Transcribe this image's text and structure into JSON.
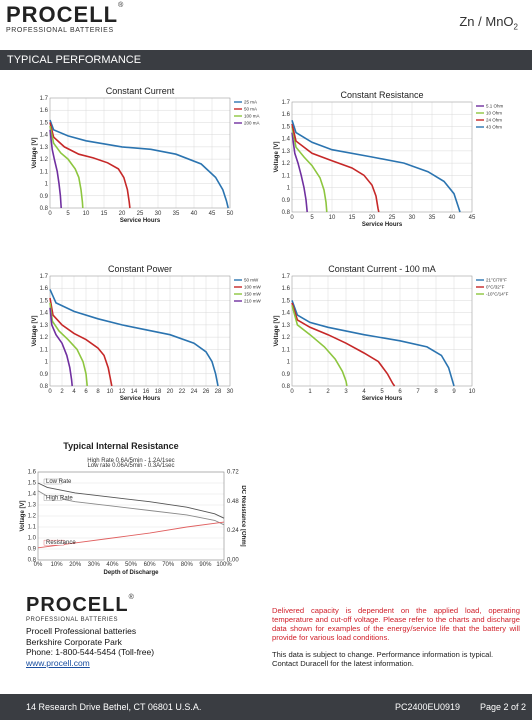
{
  "header": {
    "brand": "PROCELL",
    "tagline": "PROFESSIONAL BATTERIES",
    "chemistry": "Zn / MnO",
    "chemistry_sub": "2"
  },
  "banner": {
    "title": "TYPICAL  PERFORMANCE"
  },
  "charts": {
    "voltage_label": "Voltage [V]",
    "hours_label": "Service Hours",
    "cc": {
      "title": "Constant Current",
      "legend": [
        "25 mA",
        "50 mA",
        "100 mA",
        "200 mA"
      ],
      "xticks": [
        "0",
        "5",
        "10",
        "15",
        "20",
        "25",
        "30",
        "35",
        "40",
        "45",
        "50"
      ]
    },
    "cr": {
      "title": "Constant Resistance",
      "legend": [
        "5.1 Ohm",
        "10 Ohm",
        "24 Ohm",
        "43 Ohm"
      ],
      "xticks": [
        "0",
        "5",
        "10",
        "15",
        "20",
        "25",
        "30",
        "35",
        "40",
        "45"
      ]
    },
    "cp": {
      "title": "Constant Power",
      "legend": [
        "50 mW",
        "100 mW",
        "150 mW",
        "210 mW"
      ],
      "xticks": [
        "0",
        "2",
        "4",
        "6",
        "8",
        "10",
        "12",
        "14",
        "16",
        "18",
        "20",
        "22",
        "24",
        "26",
        "28",
        "30"
      ]
    },
    "c100": {
      "title": "Constant Current - 100 mA",
      "legend": [
        "21°C/70°F",
        "0°C/32°F",
        "-10°C/14°F"
      ],
      "xticks": [
        "0",
        "1",
        "2",
        "3",
        "4",
        "5",
        "6",
        "7",
        "8",
        "9",
        "10"
      ]
    },
    "yticks": [
      "0.8",
      "0.9",
      "1",
      "1.1",
      "1.2",
      "1.3",
      "1.4",
      "1.5",
      "1.6",
      "1.7"
    ],
    "ir": {
      "title": "Typical Internal Resistance",
      "sub1": "High Rate 0.6A/5min - 1.2A/1sec",
      "sub2": "Low rate 0.06A/5min - 0.3A/1sec",
      "low_rate": "Low Rate",
      "high_rate": "High Rate",
      "resistance": "Resistance",
      "ylabel": "Voltage [V]",
      "y2label": "DC Resistance [Ohm]",
      "xlabel": "Depth of Discharge",
      "yticks": [
        "0.8",
        "0.9",
        "1.0",
        "1.1",
        "1.2",
        "1.3",
        "1.4",
        "1.5",
        "1.6"
      ],
      "y2ticks": [
        "0.00",
        "0.24",
        "0.48",
        "0.72"
      ],
      "xticks": [
        "0%",
        "10%",
        "20%",
        "30%",
        "40%",
        "50%",
        "60%",
        "70%",
        "80%",
        "90%",
        "100%"
      ]
    }
  },
  "chart_data": [
    {
      "type": "line",
      "title": "Constant Current",
      "xlabel": "Service Hours",
      "ylabel": "Voltage [V]",
      "xlim": [
        0,
        50
      ],
      "ylim": [
        0.8,
        1.7
      ],
      "series": [
        {
          "name": "25 mA",
          "color": "#2b74b0",
          "points": [
            [
              0,
              1.52
            ],
            [
              1,
              1.44
            ],
            [
              5,
              1.39
            ],
            [
              10,
              1.35
            ],
            [
              20,
              1.3
            ],
            [
              28,
              1.28
            ],
            [
              35,
              1.24
            ],
            [
              42,
              1.16
            ],
            [
              46,
              1.05
            ],
            [
              48,
              0.95
            ],
            [
              49,
              0.86
            ],
            [
              49.5,
              0.8
            ]
          ]
        },
        {
          "name": "50 mA",
          "color": "#c62828",
          "points": [
            [
              0,
              1.5
            ],
            [
              1,
              1.38
            ],
            [
              4,
              1.3
            ],
            [
              8,
              1.24
            ],
            [
              12,
              1.21
            ],
            [
              16,
              1.17
            ],
            [
              19,
              1.12
            ],
            [
              20.5,
              1.05
            ],
            [
              21.5,
              0.95
            ],
            [
              22,
              0.85
            ],
            [
              22.2,
              0.8
            ]
          ]
        },
        {
          "name": "100 mA",
          "color": "#8dc63f",
          "points": [
            [
              0,
              1.47
            ],
            [
              1,
              1.33
            ],
            [
              3,
              1.25
            ],
            [
              5,
              1.2
            ],
            [
              7,
              1.12
            ],
            [
              8,
              1.05
            ],
            [
              8.6,
              0.95
            ],
            [
              9,
              0.85
            ],
            [
              9.1,
              0.8
            ]
          ]
        },
        {
          "name": "200 mA",
          "color": "#7030a0",
          "points": [
            [
              0,
              1.44
            ],
            [
              0.6,
              1.28
            ],
            [
              1.2,
              1.2
            ],
            [
              2,
              1.1
            ],
            [
              2.5,
              1.0
            ],
            [
              2.9,
              0.9
            ],
            [
              3.1,
              0.8
            ]
          ]
        }
      ]
    },
    {
      "type": "line",
      "title": "Constant Resistance",
      "xlabel": "Service Hours",
      "ylabel": "Voltage [V]",
      "xlim": [
        0,
        45
      ],
      "ylim": [
        0.8,
        1.7
      ],
      "series": [
        {
          "name": "5.1 Ohm",
          "color": "#7030a0",
          "points": [
            [
              0,
              1.45
            ],
            [
              0.7,
              1.28
            ],
            [
              1.5,
              1.2
            ],
            [
              2.3,
              1.1
            ],
            [
              3,
              1.0
            ],
            [
              3.5,
              0.9
            ],
            [
              3.8,
              0.8
            ]
          ]
        },
        {
          "name": "10 Ohm",
          "color": "#8dc63f",
          "points": [
            [
              0,
              1.5
            ],
            [
              1,
              1.33
            ],
            [
              3,
              1.25
            ],
            [
              5,
              1.18
            ],
            [
              7,
              1.08
            ],
            [
              8,
              0.98
            ],
            [
              8.5,
              0.88
            ],
            [
              8.7,
              0.8
            ]
          ]
        },
        {
          "name": "24 Ohm",
          "color": "#c62828",
          "points": [
            [
              0,
              1.52
            ],
            [
              1,
              1.38
            ],
            [
              5,
              1.28
            ],
            [
              10,
              1.22
            ],
            [
              15,
              1.16
            ],
            [
              18,
              1.1
            ],
            [
              20,
              1.02
            ],
            [
              21,
              0.93
            ],
            [
              21.5,
              0.83
            ],
            [
              21.7,
              0.8
            ]
          ]
        },
        {
          "name": "43 Ohm",
          "color": "#2b74b0",
          "points": [
            [
              0,
              1.55
            ],
            [
              1,
              1.45
            ],
            [
              5,
              1.37
            ],
            [
              10,
              1.31
            ],
            [
              20,
              1.25
            ],
            [
              28,
              1.2
            ],
            [
              34,
              1.13
            ],
            [
              38,
              1.05
            ],
            [
              40.5,
              0.95
            ],
            [
              41.5,
              0.85
            ],
            [
              42,
              0.8
            ]
          ]
        }
      ]
    },
    {
      "type": "line",
      "title": "Constant Power",
      "xlabel": "Service Hours",
      "ylabel": "Voltage [V]",
      "xlim": [
        0,
        30
      ],
      "ylim": [
        0.8,
        1.7
      ],
      "series": [
        {
          "name": "50 mW",
          "color": "#2b74b0",
          "points": [
            [
              0,
              1.59
            ],
            [
              1,
              1.48
            ],
            [
              4,
              1.41
            ],
            [
              8,
              1.35
            ],
            [
              12,
              1.3
            ],
            [
              16,
              1.26
            ],
            [
              20,
              1.22
            ],
            [
              24,
              1.15
            ],
            [
              26,
              1.08
            ],
            [
              27,
              1.0
            ],
            [
              27.6,
              0.9
            ],
            [
              28,
              0.8
            ]
          ]
        },
        {
          "name": "100 mW",
          "color": "#c62828",
          "points": [
            [
              0,
              1.52
            ],
            [
              0.5,
              1.38
            ],
            [
              2,
              1.3
            ],
            [
              4,
              1.23
            ],
            [
              6,
              1.18
            ],
            [
              8,
              1.11
            ],
            [
              9,
              1.05
            ],
            [
              9.7,
              0.95
            ],
            [
              10.1,
              0.85
            ],
            [
              10.3,
              0.8
            ]
          ]
        },
        {
          "name": "150 mW",
          "color": "#8dc63f",
          "points": [
            [
              0,
              1.48
            ],
            [
              0.4,
              1.33
            ],
            [
              1.5,
              1.25
            ],
            [
              3,
              1.18
            ],
            [
              4.5,
              1.1
            ],
            [
              5.5,
              1.0
            ],
            [
              6,
              0.9
            ],
            [
              6.2,
              0.8
            ]
          ]
        },
        {
          "name": "210 mW",
          "color": "#7030a0",
          "points": [
            [
              0,
              1.44
            ],
            [
              0.3,
              1.3
            ],
            [
              1,
              1.22
            ],
            [
              2,
              1.15
            ],
            [
              2.8,
              1.05
            ],
            [
              3.3,
              0.95
            ],
            [
              3.6,
              0.85
            ],
            [
              3.7,
              0.8
            ]
          ]
        }
      ]
    },
    {
      "type": "line",
      "title": "Constant Current - 100 mA",
      "xlabel": "Service Hours",
      "ylabel": "Voltage [V]",
      "xlim": [
        0,
        10
      ],
      "ylim": [
        0.8,
        1.7
      ],
      "series": [
        {
          "name": "21°C/70°F",
          "color": "#2b74b0",
          "points": [
            [
              0,
              1.5
            ],
            [
              0.3,
              1.38
            ],
            [
              1,
              1.32
            ],
            [
              2,
              1.28
            ],
            [
              4,
              1.22
            ],
            [
              6,
              1.17
            ],
            [
              7.5,
              1.12
            ],
            [
              8.3,
              1.05
            ],
            [
              8.7,
              0.95
            ],
            [
              8.9,
              0.85
            ],
            [
              9,
              0.8
            ]
          ]
        },
        {
          "name": "0°C/32°F",
          "color": "#c62828",
          "points": [
            [
              0,
              1.48
            ],
            [
              0.3,
              1.34
            ],
            [
              1,
              1.28
            ],
            [
              2,
              1.22
            ],
            [
              3,
              1.15
            ],
            [
              4,
              1.07
            ],
            [
              4.8,
              1.0
            ],
            [
              5.3,
              0.9
            ],
            [
              5.6,
              0.82
            ],
            [
              5.7,
              0.8
            ]
          ]
        },
        {
          "name": "-10°C/14°F",
          "color": "#8dc63f",
          "points": [
            [
              0,
              1.46
            ],
            [
              0.3,
              1.3
            ],
            [
              1,
              1.22
            ],
            [
              1.8,
              1.12
            ],
            [
              2.4,
              1.02
            ],
            [
              2.8,
              0.92
            ],
            [
              3,
              0.84
            ],
            [
              3.05,
              0.8
            ]
          ]
        }
      ]
    },
    {
      "type": "line",
      "title": "Typical Internal Resistance",
      "xlabel": "Depth of Discharge",
      "ylabel": "Voltage [V]",
      "y2label": "DC Resistance [Ohm]",
      "xlim": [
        0,
        100
      ],
      "ylim": [
        0.8,
        1.6
      ],
      "y2lim": [
        0,
        0.72
      ],
      "series": [
        {
          "name": "Low Rate",
          "color": "#555555",
          "axis": "left",
          "points": [
            [
              0,
              1.5
            ],
            [
              5,
              1.46
            ],
            [
              20,
              1.41
            ],
            [
              40,
              1.37
            ],
            [
              60,
              1.33
            ],
            [
              80,
              1.28
            ],
            [
              95,
              1.22
            ],
            [
              100,
              1.18
            ]
          ]
        },
        {
          "name": "High Rate",
          "color": "#8a8a8a",
          "axis": "left",
          "points": [
            [
              0,
              1.43
            ],
            [
              5,
              1.38
            ],
            [
              20,
              1.33
            ],
            [
              40,
              1.29
            ],
            [
              60,
              1.25
            ],
            [
              80,
              1.21
            ],
            [
              95,
              1.16
            ],
            [
              100,
              1.12
            ]
          ]
        },
        {
          "name": "Resistance",
          "color": "#e06060",
          "axis": "right",
          "points": [
            [
              0,
              0.1
            ],
            [
              20,
              0.14
            ],
            [
              40,
              0.18
            ],
            [
              60,
              0.22
            ],
            [
              80,
              0.27
            ],
            [
              100,
              0.31
            ]
          ]
        }
      ]
    }
  ],
  "contact": {
    "brand": "PROCELL",
    "tagline": "PROFESSIONAL BATTERIES",
    "line1": "Procell Professional batteries",
    "line2": "Berkshire Corporate Park",
    "line3": "Phone: 1-800-544-5454 (Toll-free)",
    "link": "www.procell.com"
  },
  "notes": {
    "red": "Delivered capacity is dependent on the applied load, operating temperature and cut-off voltage. Please refer to the charts and discharge data shown for examples of the energy/service life that the battery will provide for various load conditions.",
    "black": "This data is subject to change. Performance information is typical. Contact Duracell for the latest information."
  },
  "footer": {
    "address": "14 Research Drive Bethel, CT 06801 U.S.A.",
    "doc": "PC2400EU0919",
    "page": "Page 2 of 2"
  }
}
